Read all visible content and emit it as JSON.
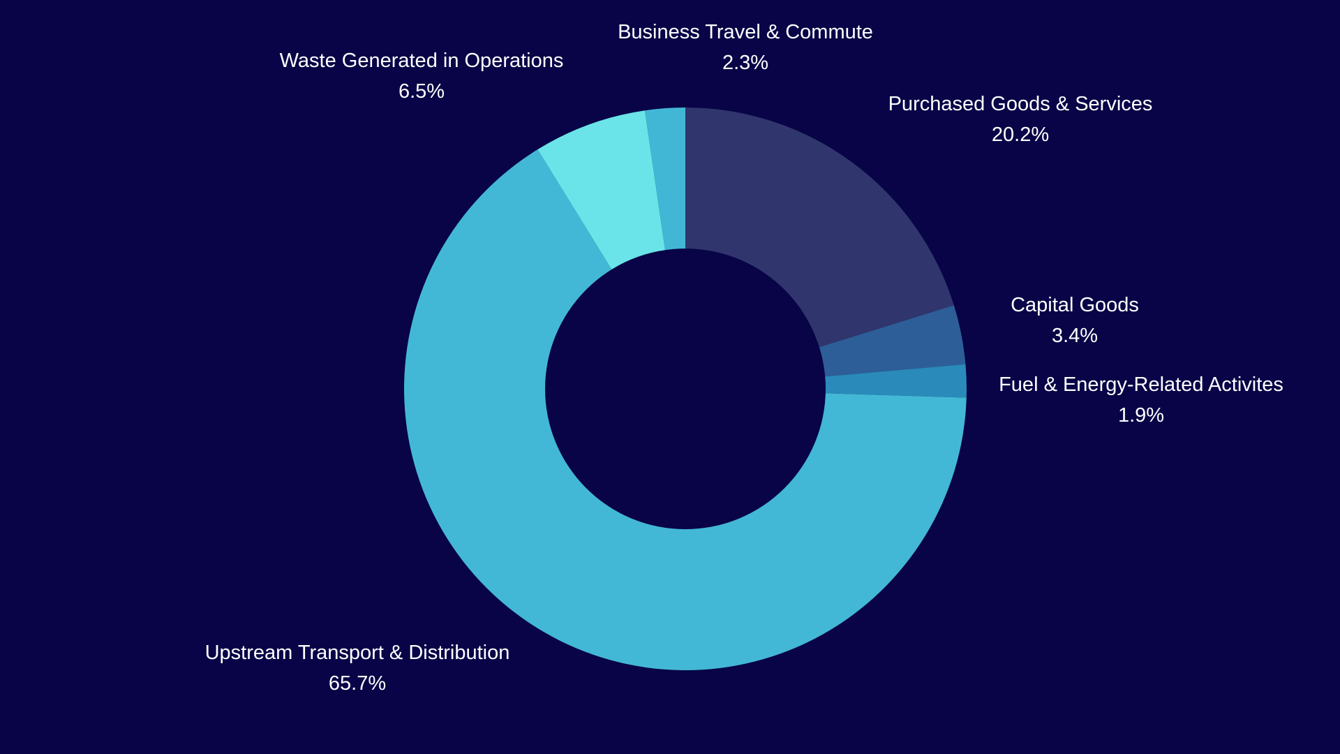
{
  "chart_data": {
    "type": "pie",
    "variant": "donut",
    "title": "",
    "slices": [
      {
        "label": "Purchased Goods & Services",
        "value": 20.2,
        "display": "20.2%",
        "color": "#30366D"
      },
      {
        "label": "Capital Goods",
        "value": 3.4,
        "display": "3.4%",
        "color": "#2D5E98"
      },
      {
        "label": "Fuel & Energy-Related Activites",
        "value": 1.9,
        "display": "1.9%",
        "color": "#2A8AB9"
      },
      {
        "label": "Upstream Transport & Distribution",
        "value": 65.7,
        "display": "65.7%",
        "color": "#43B8D6"
      },
      {
        "label": "Waste Generated in Operations",
        "value": 6.5,
        "display": "6.5%",
        "color": "#6AE4E8"
      },
      {
        "label": "Business Travel & Commute",
        "value": 2.3,
        "display": "2.3%",
        "color": "#42B7D5"
      }
    ],
    "start_angle": "12 o'clock",
    "direction": "clockwise",
    "legend": "none",
    "labels": "outside"
  },
  "colors": {
    "background": "#080447",
    "label_text": "#FFFFFF"
  }
}
